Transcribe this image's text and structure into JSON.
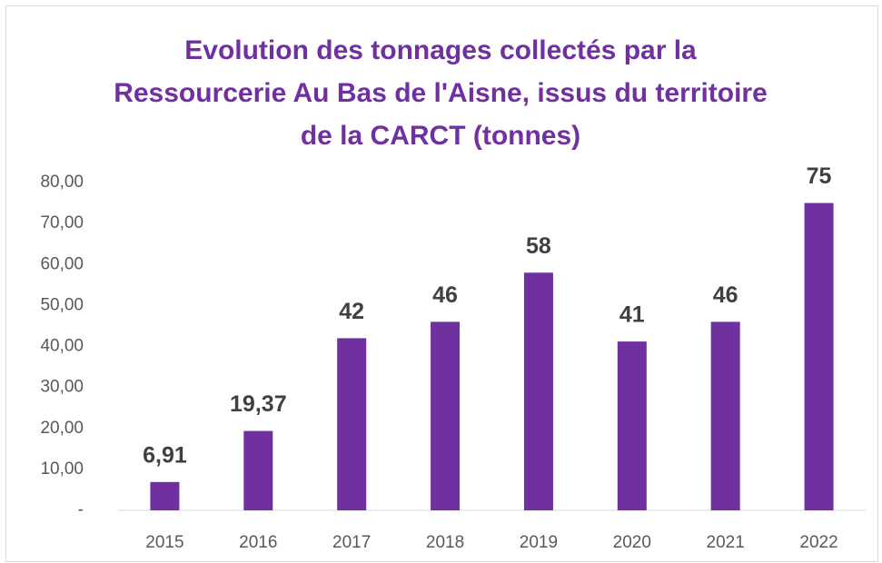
{
  "chart_data": {
    "type": "bar",
    "title": [
      "Evolution des tonnages collectés par la",
      "Ressourcerie Au Bas de l'Aisne, issus du territoire",
      "de la CARCT (tonnes)"
    ],
    "categories": [
      "2015",
      "2016",
      "2017",
      "2018",
      "2019",
      "2020",
      "2021",
      "2022"
    ],
    "values": [
      6.91,
      19.37,
      42,
      46,
      58,
      41.2,
      46,
      75
    ],
    "value_labels": [
      "6,91",
      "19,37",
      "42",
      "46",
      "58",
      "41",
      "46",
      "75"
    ],
    "color": "#7030a0",
    "ylim": [
      0,
      80
    ],
    "yticks": [
      {
        "value": 0,
        "label": "-"
      },
      {
        "value": 10,
        "label": "10,00"
      },
      {
        "value": 20,
        "label": "20,00"
      },
      {
        "value": 30,
        "label": "30,00"
      },
      {
        "value": 40,
        "label": "40,00"
      },
      {
        "value": 50,
        "label": "50,00"
      },
      {
        "value": 60,
        "label": "60,00"
      },
      {
        "value": 70,
        "label": "70,00"
      },
      {
        "value": 80,
        "label": "80,00"
      }
    ],
    "grid": false
  }
}
